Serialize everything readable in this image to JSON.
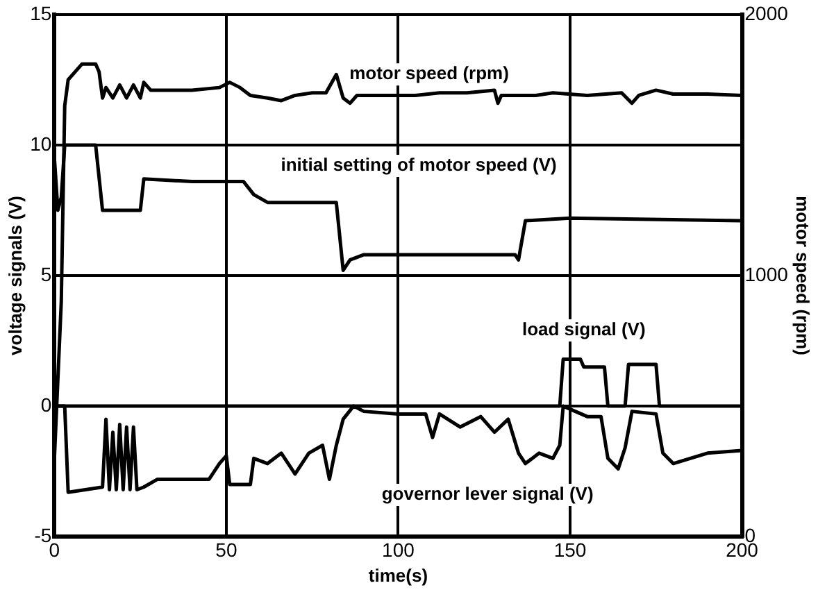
{
  "chart_data": {
    "type": "line",
    "xlabel": "time(s)",
    "ylabel": "voltage signals (V)",
    "y2label": "motor speed (rpm)",
    "xlim": [
      0,
      200
    ],
    "xticks": [
      0,
      50,
      100,
      150,
      200
    ],
    "ylim": [
      -5,
      15
    ],
    "yticks": [
      -5,
      0,
      5,
      10,
      15
    ],
    "y2lim": [
      0,
      2000
    ],
    "y2ticks": [
      0,
      1000,
      2000
    ],
    "grid": true,
    "legend": false,
    "marker": "none",
    "line_style": "solid",
    "series": [
      {
        "name": "motor speed (rpm)",
        "color": "#000000",
        "axis": "y2",
        "x": [
          0,
          2,
          3,
          4,
          6,
          8,
          12,
          13,
          14,
          15,
          17,
          19,
          21,
          23,
          25,
          26,
          28,
          40,
          48,
          51,
          54,
          57,
          62,
          66,
          70,
          75,
          79,
          82,
          84,
          86,
          88,
          95,
          105,
          112,
          120,
          128,
          129,
          130,
          140,
          145,
          155,
          165,
          168,
          170,
          175,
          180,
          190,
          200
        ],
        "values": [
          300,
          900,
          1650,
          1750,
          1780,
          1810,
          1810,
          1780,
          1680,
          1720,
          1680,
          1730,
          1680,
          1730,
          1680,
          1740,
          1710,
          1710,
          1720,
          1740,
          1720,
          1690,
          1680,
          1670,
          1690,
          1700,
          1700,
          1770,
          1680,
          1660,
          1690,
          1690,
          1690,
          1700,
          1700,
          1710,
          1660,
          1690,
          1690,
          1700,
          1690,
          1700,
          1660,
          1690,
          1710,
          1695,
          1695,
          1690
        ]
      },
      {
        "name": "initial setting of motor speed (V)",
        "color": "#000000",
        "x": [
          0,
          1,
          2,
          3,
          12,
          14,
          25,
          26,
          40,
          55,
          58,
          62,
          82,
          84,
          86,
          90,
          134,
          135,
          137,
          150,
          200
        ],
        "values": [
          9.5,
          7.5,
          8,
          10,
          10,
          7.5,
          7.5,
          8.7,
          8.6,
          8.6,
          8.1,
          7.8,
          7.8,
          5.2,
          5.6,
          5.8,
          5.8,
          5.6,
          7.1,
          7.2,
          7.1
        ]
      },
      {
        "name": "load signal (V)",
        "color": "#000000",
        "x": [
          0,
          147,
          148,
          153,
          154,
          160,
          161,
          166,
          167,
          175,
          176,
          200
        ],
        "values": [
          0,
          0,
          1.8,
          1.8,
          1.5,
          1.5,
          0,
          0,
          1.6,
          1.6,
          0,
          0
        ]
      },
      {
        "name": "governor lever signal (V)",
        "color": "#000000",
        "x": [
          0,
          3,
          4,
          14,
          15,
          16,
          17,
          18,
          19,
          20,
          21,
          22,
          23,
          24,
          26,
          30,
          45,
          48,
          50,
          51,
          57,
          58,
          62,
          66,
          70,
          74,
          78,
          80,
          82,
          84,
          87,
          90,
          100,
          108,
          110,
          112,
          118,
          124,
          128,
          132,
          135,
          137,
          141,
          145,
          147,
          148,
          155,
          159,
          161,
          164,
          166,
          168,
          175,
          177,
          180,
          190,
          200
        ],
        "values": [
          0,
          0,
          -3.3,
          -3.1,
          -0.5,
          -3.2,
          -1,
          -3.2,
          -0.7,
          -3.2,
          -0.8,
          -3.2,
          -0.8,
          -3.2,
          -3.1,
          -2.8,
          -2.8,
          -2.2,
          -1.9,
          -3,
          -3,
          -2,
          -2.2,
          -1.8,
          -2.6,
          -1.8,
          -1.5,
          -2.8,
          -1.5,
          -0.5,
          0,
          -0.2,
          -0.3,
          -0.3,
          -1.2,
          -0.3,
          -0.8,
          -0.4,
          -1,
          -0.5,
          -1.8,
          -2.2,
          -1.8,
          -2,
          -1.5,
          0,
          -0.4,
          -0.4,
          -2,
          -2.4,
          -1.6,
          -0.2,
          -0.3,
          -1.8,
          -2.2,
          -1.8,
          -1.7
        ]
      }
    ]
  }
}
